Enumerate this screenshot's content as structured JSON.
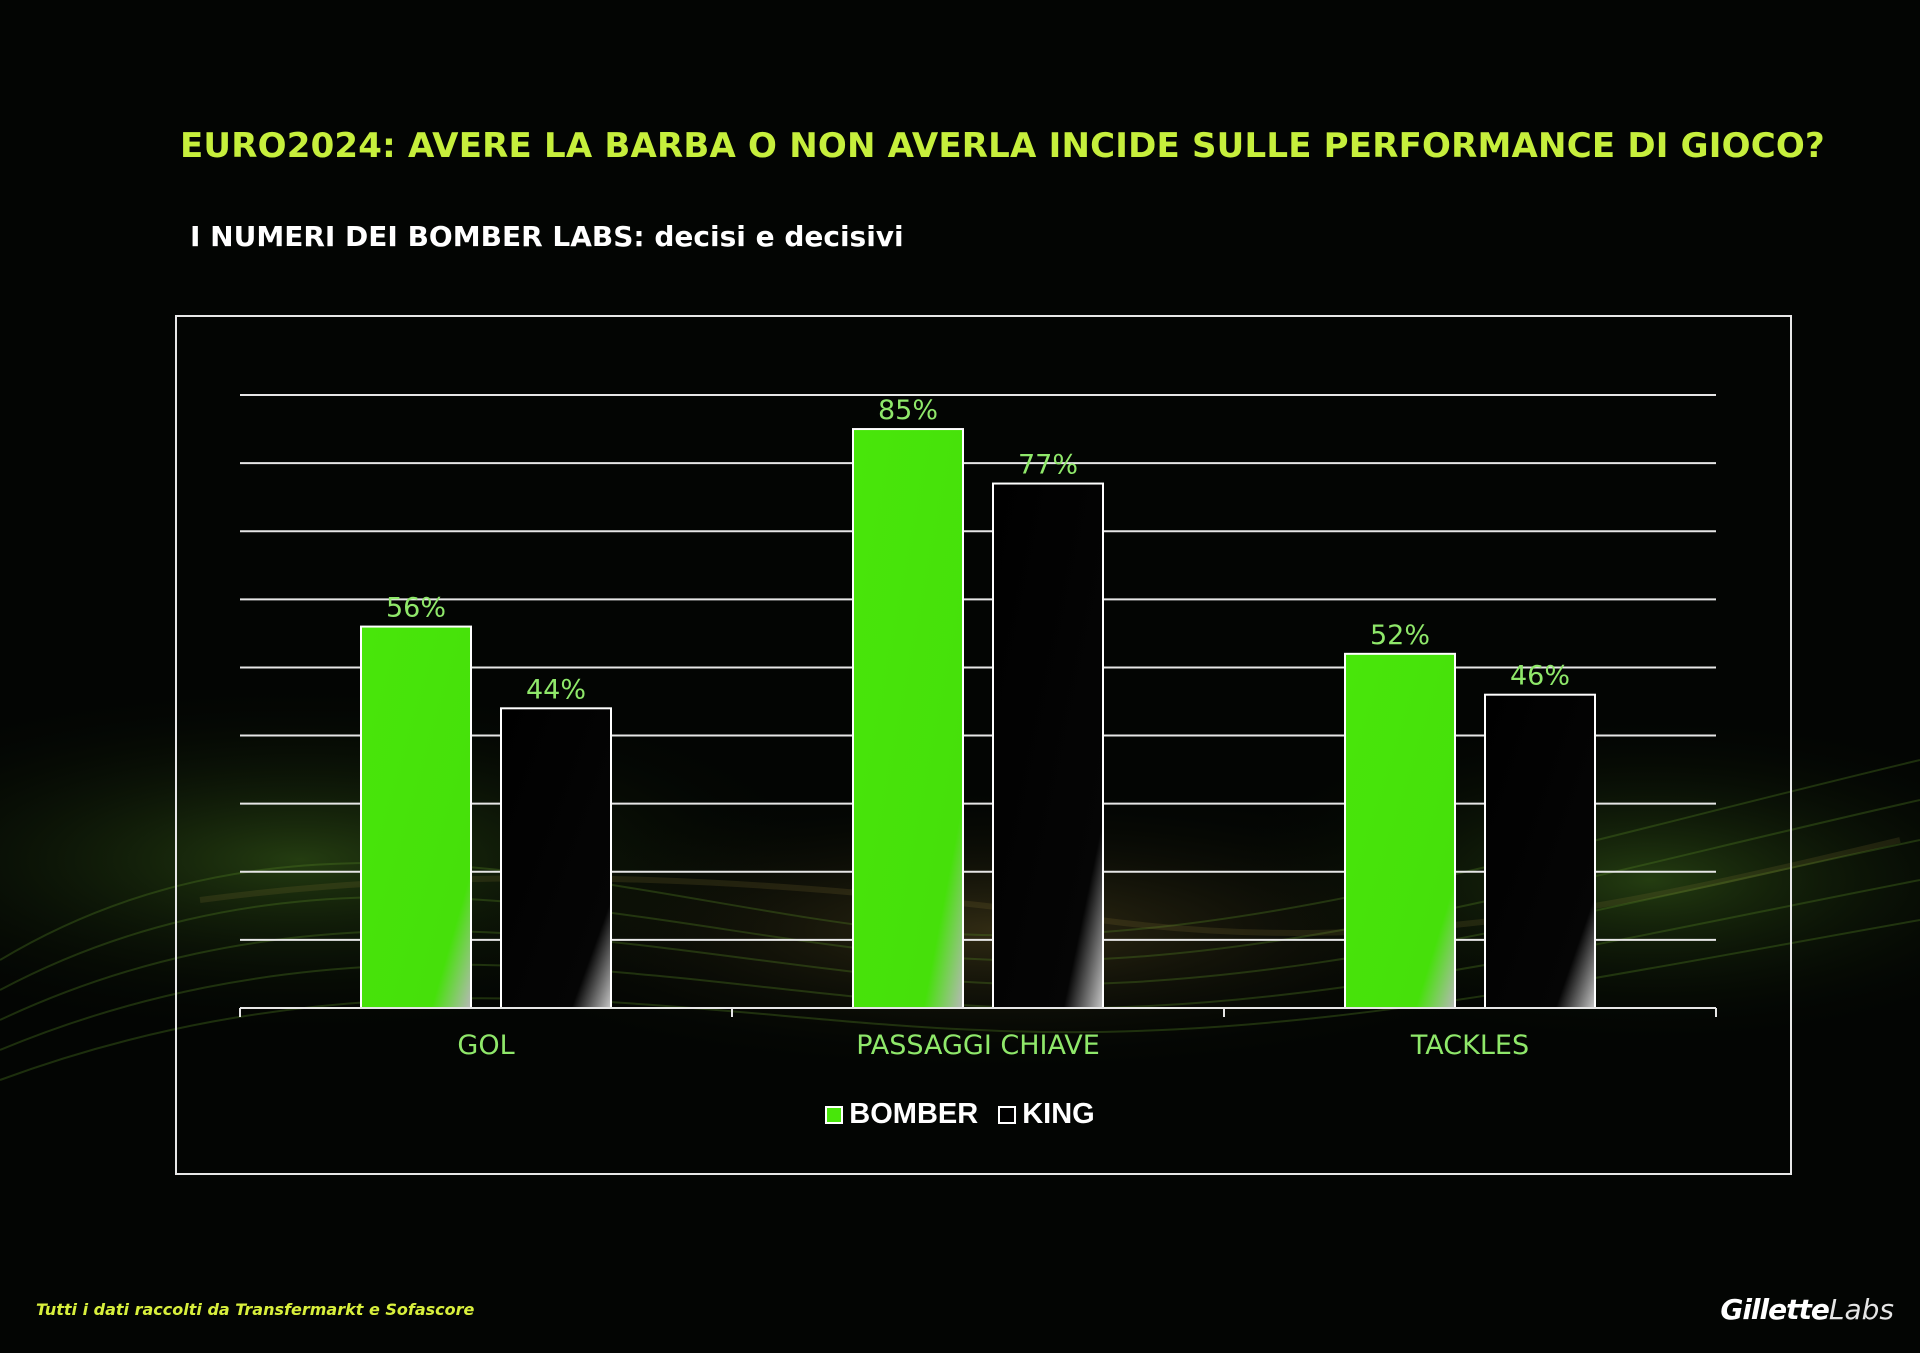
{
  "title": "EURO2024: AVERE LA BARBA O NON AVERLA INCIDE SULLE PERFORMANCE DI GIOCO?",
  "subtitle": "I NUMERI DEI BOMBER LABS: decisi e decisivi",
  "footnote": "Tutti i dati raccolti da Transfermarkt e Sofascore",
  "brand": {
    "part1": "Gillette",
    "part2": "Labs"
  },
  "colors": {
    "background": "#030503",
    "title": "#c6ef3c",
    "bomber": "#48e60a",
    "king": "#000000",
    "value_label": "#8fe86a",
    "axis_label": "#8fe86a",
    "grid": "#e6e6e6"
  },
  "chart_data": {
    "type": "bar",
    "categories": [
      "GOL",
      "PASSAGGI CHIAVE",
      "TACKLES"
    ],
    "series": [
      {
        "name": "BOMBER",
        "values": [
          56,
          85,
          52
        ],
        "labels": [
          "56%",
          "85%",
          "52%"
        ],
        "color": "#48e60a"
      },
      {
        "name": "KING",
        "values": [
          44,
          77,
          46
        ],
        "labels": [
          "44%",
          "77%",
          "46%"
        ],
        "color": "#000000"
      }
    ],
    "ylim": [
      0,
      90
    ],
    "grid": true,
    "legend": "bottom-center",
    "xlabel": "",
    "ylabel": ""
  }
}
